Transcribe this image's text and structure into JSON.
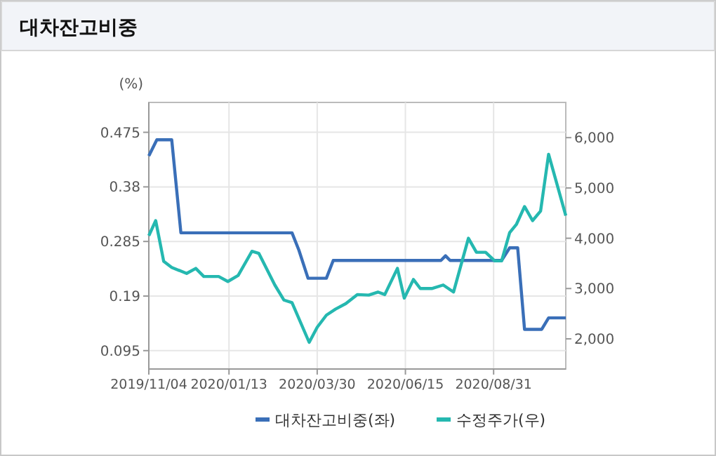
{
  "chart_data": {
    "type": "line",
    "title": "대차잔고비중",
    "ylabel": "(%)",
    "xlim": [
      "2019-11-04",
      "2020-11-02"
    ],
    "xticks": [
      {
        "value": "2019-11-04",
        "label": "2019/11/04"
      },
      {
        "value": "2020-01-13",
        "label": "2020/01/13"
      },
      {
        "value": "2020-03-30",
        "label": "2020/03/30"
      },
      {
        "value": "2020-06-15",
        "label": "2020/06/15"
      },
      {
        "value": "2020-08-31",
        "label": "2020/08/31"
      }
    ],
    "ylim": [
      0.063,
      0.527
    ],
    "yticks": [
      0.095,
      {
        "value": 0.19,
        "label": "0.19"
      },
      0.285,
      {
        "value": 0.38,
        "label": "0.38"
      },
      0.475
    ],
    "y2lim": [
      1400,
      6700
    ],
    "y2ticks": [
      {
        "value": 2000,
        "label": "2,000"
      },
      {
        "value": 3000,
        "label": "3,000"
      },
      {
        "value": 4000,
        "label": "4,000"
      },
      {
        "value": 5000,
        "label": "5,000"
      },
      {
        "value": 6000,
        "label": "6,000"
      }
    ],
    "grid": true,
    "legend": "bottom",
    "marker": "none",
    "line_style": "solid",
    "series": [
      {
        "name": "대차잔고비중(좌)",
        "color": "#3a6fb8",
        "x": [
          "2019-11-04",
          "2019-11-11",
          "2019-11-24",
          "2019-12-02",
          "2020-03-08",
          "2020-03-14",
          "2020-03-22",
          "2020-04-07",
          "2020-04-13",
          "2020-07-16",
          "2020-07-20",
          "2020-07-24",
          "2020-09-07",
          "2020-09-14",
          "2020-09-21",
          "2020-09-27",
          "2020-10-12",
          "2020-10-18",
          "2020-11-02"
        ],
        "values": [
          0.434,
          0.462,
          0.462,
          0.3,
          0.3,
          0.27,
          0.221,
          0.221,
          0.252,
          0.252,
          0.26,
          0.252,
          0.252,
          0.274,
          0.274,
          0.132,
          0.132,
          0.152,
          0.152
        ]
      },
      {
        "name": "수정주가(우)",
        "color": "#25b8b0",
        "axis": "y2",
        "x": [
          "2019-11-04",
          "2019-11-10",
          "2019-11-17",
          "2019-11-24",
          "2019-12-07",
          "2019-12-15",
          "2019-12-22",
          "2020-01-04",
          "2020-01-12",
          "2020-01-21",
          "2020-02-02",
          "2020-02-08",
          "2020-02-22",
          "2020-03-01",
          "2020-03-08",
          "2020-03-23",
          "2020-03-30",
          "2020-04-07",
          "2020-04-15",
          "2020-04-24",
          "2020-05-04",
          "2020-05-14",
          "2020-05-22",
          "2020-05-28",
          "2020-06-08",
          "2020-06-14",
          "2020-06-22",
          "2020-06-28",
          "2020-07-08",
          "2020-07-18",
          "2020-07-27",
          "2020-08-09",
          "2020-08-16",
          "2020-08-24",
          "2020-09-01",
          "2020-09-07",
          "2020-09-14",
          "2020-09-20",
          "2020-09-27",
          "2020-10-04",
          "2020-10-11",
          "2020-10-18",
          "2020-11-02"
        ],
        "values": [
          4050,
          4350,
          3540,
          3420,
          3300,
          3400,
          3240,
          3240,
          3140,
          3260,
          3740,
          3700,
          3070,
          2770,
          2720,
          1930,
          2230,
          2470,
          2590,
          2700,
          2880,
          2870,
          2930,
          2880,
          3400,
          2810,
          3180,
          3000,
          3000,
          3070,
          2930,
          4000,
          3720,
          3720,
          3550,
          3550,
          4110,
          4280,
          4630,
          4350,
          4540,
          5670,
          4450
        ]
      }
    ]
  }
}
